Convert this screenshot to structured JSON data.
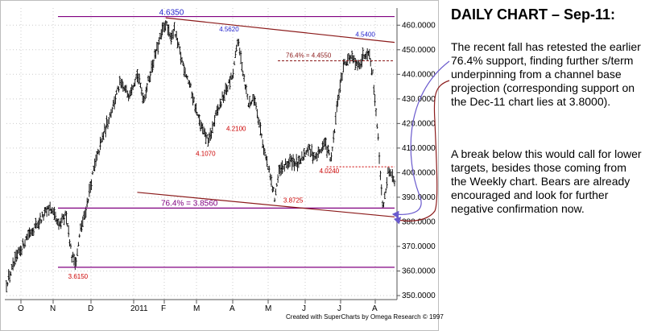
{
  "panel": {
    "title": "DAILY CHART – Sep-11:",
    "paragraph1": "The recent fall has retested the earlier 76.4% support, finding further s/term underpinning from a channel base projection (corresponding support on the Dec-11 chart lies at 3.8000).",
    "paragraph2": "A break below this would call for lower targets, besides those coming from the Weekly chart. Bears are already encouraged and look for further negative confirmation now."
  },
  "colors": {
    "bars": "#000000",
    "resistance_line": "#8b1a1a",
    "horizontal_line": "#800080",
    "price_label": "#cc0000",
    "peak_label": "#2222cc",
    "arrow": "#6a5acd",
    "grid": "#cccccc"
  },
  "chart_data": {
    "type": "ohlc",
    "title": "",
    "xlabel": "",
    "ylabel": "",
    "ylim": [
      350,
      465
    ],
    "y_ticks": [
      "350.0000",
      "360.0000",
      "370.0000",
      "380.0000",
      "390.0000",
      "400.0000",
      "410.0000",
      "420.0000",
      "430.0000",
      "440.0000",
      "450.0000",
      "460.0000"
    ],
    "x_ticks": [
      "O",
      "N",
      "D",
      "2011",
      "F",
      "M",
      "A",
      "M",
      "J",
      "J",
      "A"
    ],
    "credit": "Created with SuperCharts by Omega Research © 1997",
    "anchors": [
      {
        "i": 0,
        "v": 355
      },
      {
        "i": 10,
        "v": 366
      },
      {
        "i": 20,
        "v": 375
      },
      {
        "i": 30,
        "v": 380
      },
      {
        "i": 40,
        "v": 386
      },
      {
        "i": 48,
        "v": 378
      },
      {
        "i": 55,
        "v": 383
      },
      {
        "i": 60,
        "v": 366
      },
      {
        "i": 64,
        "v": 364
      },
      {
        "i": 68,
        "v": 377
      },
      {
        "i": 72,
        "v": 383
      },
      {
        "i": 80,
        "v": 401
      },
      {
        "i": 88,
        "v": 414
      },
      {
        "i": 96,
        "v": 425
      },
      {
        "i": 104,
        "v": 436
      },
      {
        "i": 112,
        "v": 432
      },
      {
        "i": 120,
        "v": 440
      },
      {
        "i": 126,
        "v": 430
      },
      {
        "i": 134,
        "v": 444
      },
      {
        "i": 142,
        "v": 456
      },
      {
        "i": 146,
        "v": 461
      },
      {
        "i": 150,
        "v": 455
      },
      {
        "i": 154,
        "v": 458
      },
      {
        "i": 160,
        "v": 447
      },
      {
        "i": 168,
        "v": 436
      },
      {
        "i": 176,
        "v": 422
      },
      {
        "i": 182,
        "v": 415
      },
      {
        "i": 186,
        "v": 413
      },
      {
        "i": 192,
        "v": 423
      },
      {
        "i": 200,
        "v": 432
      },
      {
        "i": 208,
        "v": 440
      },
      {
        "i": 212,
        "v": 454
      },
      {
        "i": 216,
        "v": 444
      },
      {
        "i": 222,
        "v": 428
      },
      {
        "i": 228,
        "v": 430
      },
      {
        "i": 236,
        "v": 410
      },
      {
        "i": 242,
        "v": 398
      },
      {
        "i": 246,
        "v": 390
      },
      {
        "i": 250,
        "v": 400
      },
      {
        "i": 256,
        "v": 403
      },
      {
        "i": 262,
        "v": 405
      },
      {
        "i": 268,
        "v": 403
      },
      {
        "i": 276,
        "v": 410
      },
      {
        "i": 284,
        "v": 406
      },
      {
        "i": 292,
        "v": 412
      },
      {
        "i": 298,
        "v": 405
      },
      {
        "i": 304,
        "v": 430
      },
      {
        "i": 310,
        "v": 445
      },
      {
        "i": 316,
        "v": 447
      },
      {
        "i": 322,
        "v": 443
      },
      {
        "i": 328,
        "v": 448
      },
      {
        "i": 332,
        "v": 450
      },
      {
        "i": 336,
        "v": 440
      },
      {
        "i": 340,
        "v": 420
      },
      {
        "i": 343,
        "v": 400
      },
      {
        "i": 345,
        "v": 386
      },
      {
        "i": 347,
        "v": 390
      },
      {
        "i": 350,
        "v": 400
      },
      {
        "i": 353,
        "v": 398
      },
      {
        "i": 356,
        "v": 397
      }
    ],
    "annotations": {
      "peak_high": {
        "label": "4.6350",
        "i": 146,
        "v": 463.5
      },
      "peak_mid": {
        "label": "4.5620",
        "i": 204,
        "v": 456.2
      },
      "peak_late": {
        "label": "4.5400",
        "i": 326,
        "v": 454.0
      },
      "low_dec": {
        "label": "3.6150",
        "i": 64,
        "v": 361.5
      },
      "low_mar": {
        "label": "4.1070",
        "i": 184,
        "v": 410.7
      },
      "low_apr": {
        "label": "4.2100",
        "i": 212,
        "v": 421.0
      },
      "low_may": {
        "label": "3.8725",
        "i": 254,
        "v": 387.25
      },
      "low_jul": {
        "label": "4.0240",
        "i": 290,
        "v": 402.4
      },
      "fib_high": {
        "label": "76.4% = 4.4550",
        "v": 445.5
      },
      "fib_low": {
        "label": "76.4% = 3.8560",
        "v": 385.6
      },
      "top_line": 463.5,
      "bottom_line": 361.5,
      "upper_channel": {
        "i1": 146,
        "v1": 463,
        "i2": 356,
        "v2": 453
      },
      "lower_channel": {
        "i1": 120,
        "v1": 392,
        "i2": 356,
        "v2": 382
      }
    }
  }
}
